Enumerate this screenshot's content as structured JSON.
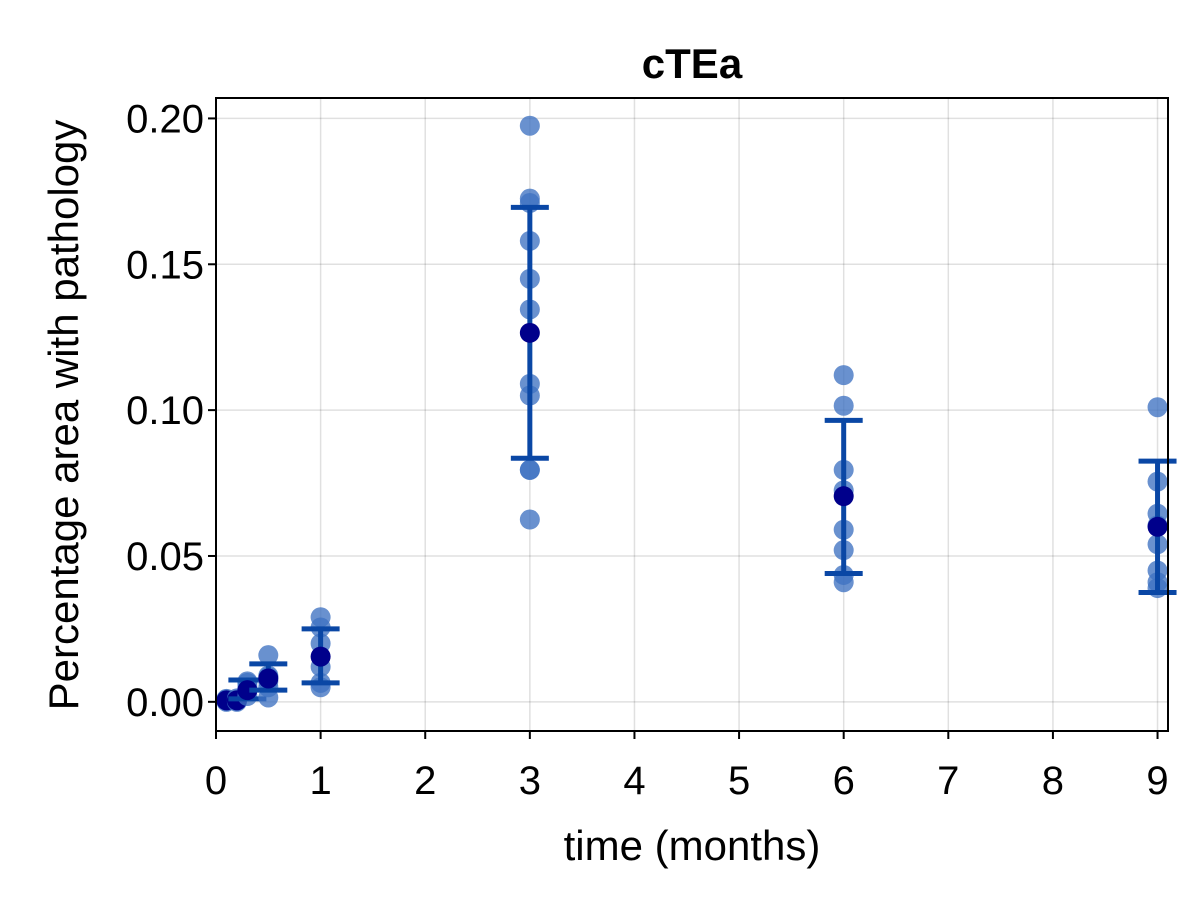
{
  "chart_data": {
    "type": "scatter",
    "title": "cTEa",
    "xlabel": "time (months)",
    "ylabel": "Percentage area with pathology",
    "xlim": [
      0,
      9.1
    ],
    "ylim": [
      -0.01,
      0.207
    ],
    "xticks": [
      "0",
      "1",
      "2",
      "3",
      "4",
      "5",
      "6",
      "7",
      "8",
      "9"
    ],
    "yticks": [
      "0.00",
      "0.05",
      "0.10",
      "0.15",
      "0.20"
    ],
    "grid": true,
    "colors": {
      "points": "#3f72c2",
      "mean": "#00008b",
      "errorbar": "#0a47a5"
    },
    "groups": [
      {
        "x": 0.1,
        "points": [
          0.0,
          0.0005,
          0.001,
          0.0003,
          0.0008
        ],
        "mean": 0.0005,
        "lower": null,
        "upper": null
      },
      {
        "x": 0.2,
        "points": [
          0.0,
          0.0003,
          0.0008,
          0.0012
        ],
        "mean": 0.0005,
        "lower": null,
        "upper": null
      },
      {
        "x": 0.3,
        "points": [
          0.002,
          0.004,
          0.005,
          0.007,
          0.0065
        ],
        "mean": 0.004,
        "lower": 0.001,
        "upper": 0.0075
      },
      {
        "x": 0.5,
        "points": [
          0.0015,
          0.005,
          0.007,
          0.0085,
          0.016,
          0.009
        ],
        "mean": 0.008,
        "lower": 0.004,
        "upper": 0.013
      },
      {
        "x": 1.0,
        "points": [
          0.005,
          0.0065,
          0.012,
          0.02,
          0.0255,
          0.029
        ],
        "mean": 0.0155,
        "lower": 0.0065,
        "upper": 0.025
      },
      {
        "x": 3.0,
        "points": [
          0.0625,
          0.0795,
          0.0795,
          0.105,
          0.109,
          0.1345,
          0.145,
          0.158,
          0.171,
          0.1725,
          0.1975
        ],
        "mean": 0.1265,
        "lower": 0.0835,
        "upper": 0.1695
      },
      {
        "x": 6.0,
        "points": [
          0.041,
          0.0435,
          0.052,
          0.059,
          0.0725,
          0.0795,
          0.1015,
          0.112
        ],
        "mean": 0.0705,
        "lower": 0.044,
        "upper": 0.0965
      },
      {
        "x": 9.0,
        "points": [
          0.039,
          0.041,
          0.045,
          0.054,
          0.0605,
          0.0645,
          0.0755,
          0.101
        ],
        "mean": 0.06,
        "lower": 0.0375,
        "upper": 0.0825
      }
    ]
  }
}
